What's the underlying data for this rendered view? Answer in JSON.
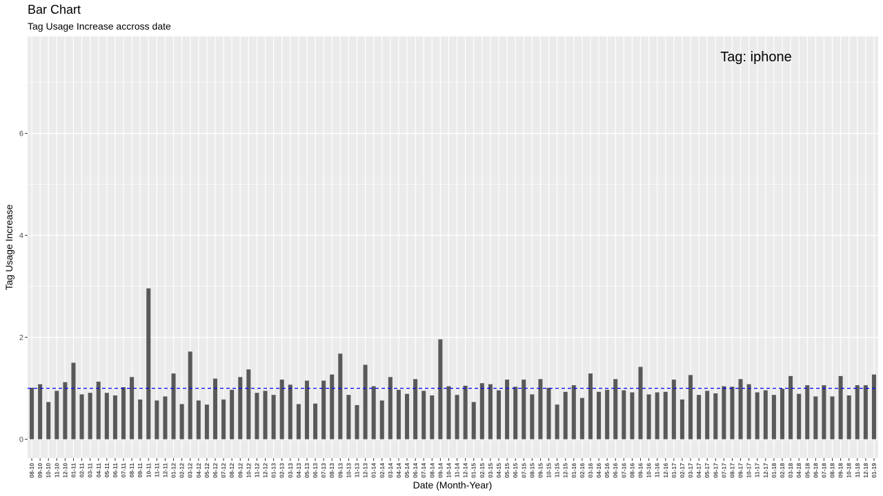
{
  "header": {
    "title": "Bar Chart",
    "subtitle": "Tag Usage Increase accross date"
  },
  "chart_data": {
    "type": "bar",
    "title": "Bar Chart",
    "subtitle": "Tag Usage Increase accross date",
    "xlabel": "Date (Month-Year)",
    "ylabel": "Tag Usage Increase",
    "ylim": [
      -0.37,
      7.9
    ],
    "yticks": [
      0,
      2,
      4,
      6
    ],
    "grid": true,
    "annotation": "Tag: iphone",
    "reference_line": {
      "y": 1.0,
      "style": "dashed",
      "color": "#0000ff"
    },
    "bar_color": "#595959",
    "panel_color": "#ebebeb",
    "categories": [
      "08-10",
      "09-10",
      "10-10",
      "11-10",
      "12-10",
      "01-11",
      "02-11",
      "03-11",
      "04-11",
      "05-11",
      "06-11",
      "07-11",
      "08-11",
      "09-11",
      "10-11",
      "11-11",
      "12-11",
      "01-12",
      "02-12",
      "03-12",
      "04-12",
      "05-12",
      "06-12",
      "07-12",
      "08-12",
      "09-12",
      "10-12",
      "11-12",
      "12-12",
      "01-13",
      "02-13",
      "03-13",
      "04-13",
      "05-13",
      "06-13",
      "07-13",
      "08-13",
      "09-13",
      "10-13",
      "11-13",
      "12-13",
      "01-14",
      "02-14",
      "03-14",
      "04-14",
      "05-14",
      "06-14",
      "07-14",
      "08-14",
      "09-14",
      "10-14",
      "11-14",
      "12-14",
      "01-15",
      "02-15",
      "03-15",
      "04-15",
      "05-15",
      "06-15",
      "07-15",
      "08-15",
      "09-15",
      "10-15",
      "11-15",
      "12-15",
      "01-16",
      "02-16",
      "03-16",
      "04-16",
      "05-16",
      "06-16",
      "07-16",
      "08-16",
      "09-16",
      "10-16",
      "11-16",
      "12-16",
      "01-17",
      "02-17",
      "03-17",
      "04-17",
      "05-17",
      "06-17",
      "07-17",
      "08-17",
      "09-17",
      "10-17",
      "11-17",
      "12-17",
      "01-18",
      "02-18",
      "03-18",
      "04-18",
      "05-18",
      "06-18",
      "07-18",
      "08-18",
      "09-18",
      "10-18",
      "11-18",
      "12-18",
      "01-19"
    ],
    "values": [
      1.01,
      1.08,
      0.73,
      0.95,
      1.12,
      1.5,
      0.88,
      0.91,
      1.13,
      0.91,
      0.86,
      1.02,
      1.22,
      0.78,
      2.96,
      0.76,
      0.84,
      1.29,
      0.69,
      1.72,
      0.76,
      0.68,
      1.19,
      0.78,
      0.97,
      1.22,
      1.37,
      0.91,
      0.95,
      0.87,
      1.17,
      1.07,
      0.69,
      1.15,
      0.7,
      1.15,
      1.27,
      1.68,
      0.87,
      0.67,
      1.46,
      1.04,
      0.76,
      1.22,
      0.97,
      0.89,
      1.18,
      0.95,
      0.86,
      1.96,
      1.04,
      0.87,
      1.05,
      0.73,
      1.1,
      1.08,
      0.96,
      1.17,
      1.03,
      1.17,
      0.88,
      1.18,
      1.01,
      0.68,
      0.93,
      1.06,
      0.81,
      1.29,
      0.93,
      0.97,
      1.18,
      0.96,
      0.92,
      1.42,
      0.88,
      0.92,
      0.93,
      1.17,
      0.78,
      1.26,
      0.87,
      0.95,
      0.9,
      1.04,
      1.03,
      1.18,
      1.08,
      0.92,
      0.96,
      0.87,
      0.99,
      1.24,
      0.89,
      1.06,
      0.84,
      1.06,
      0.84,
      1.24,
      0.86,
      1.06,
      1.06,
      1.27
    ]
  }
}
